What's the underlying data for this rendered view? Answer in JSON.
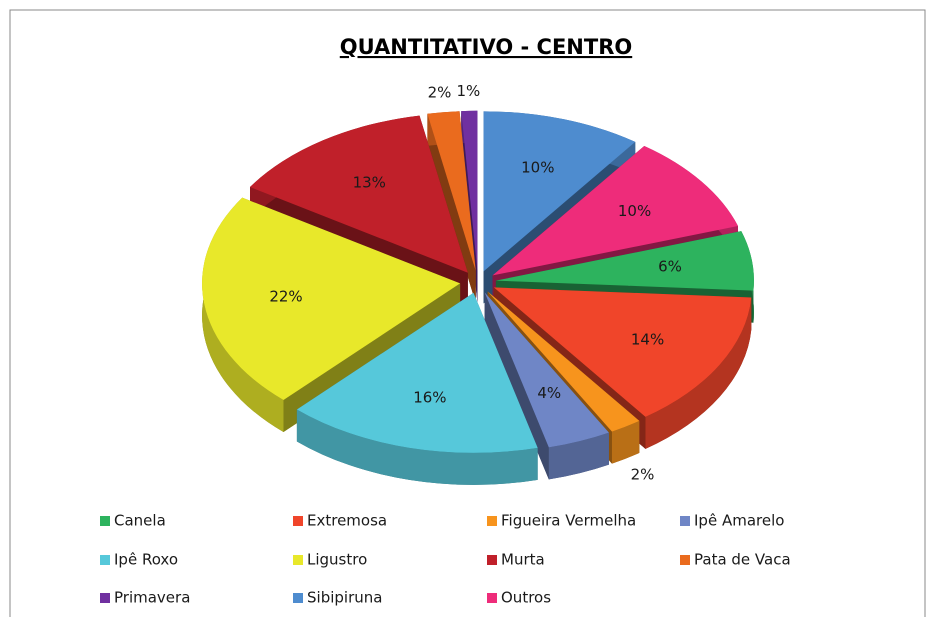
{
  "chart_data": {
    "type": "pie3d",
    "title": "QUANTITATIVO - CENTRO",
    "categories": [
      "Canela",
      "Extremosa",
      "Figueira Vermelha",
      "Ipê Amarelo",
      "Ipê Roxo",
      "Ligustro",
      "Murta",
      "Pata de Vaca",
      "Primavera",
      "Sibipiruna",
      "Outros"
    ],
    "values": [
      6,
      14,
      2,
      4,
      16,
      22,
      13,
      2,
      1,
      10,
      10
    ],
    "value_labels": [
      "6%",
      "14%",
      "2%",
      "4%",
      "16%",
      "22%",
      "13%",
      "2%",
      "1%",
      "10%",
      "10%"
    ],
    "colors": [
      "#2db35e",
      "#f0452a",
      "#f7941d",
      "#6f86c6",
      "#56c8da",
      "#e8e82a",
      "#c0202a",
      "#ea6b1e",
      "#7030a0",
      "#4e8ccf",
      "#ee2c7a"
    ],
    "legend": "bottom"
  }
}
